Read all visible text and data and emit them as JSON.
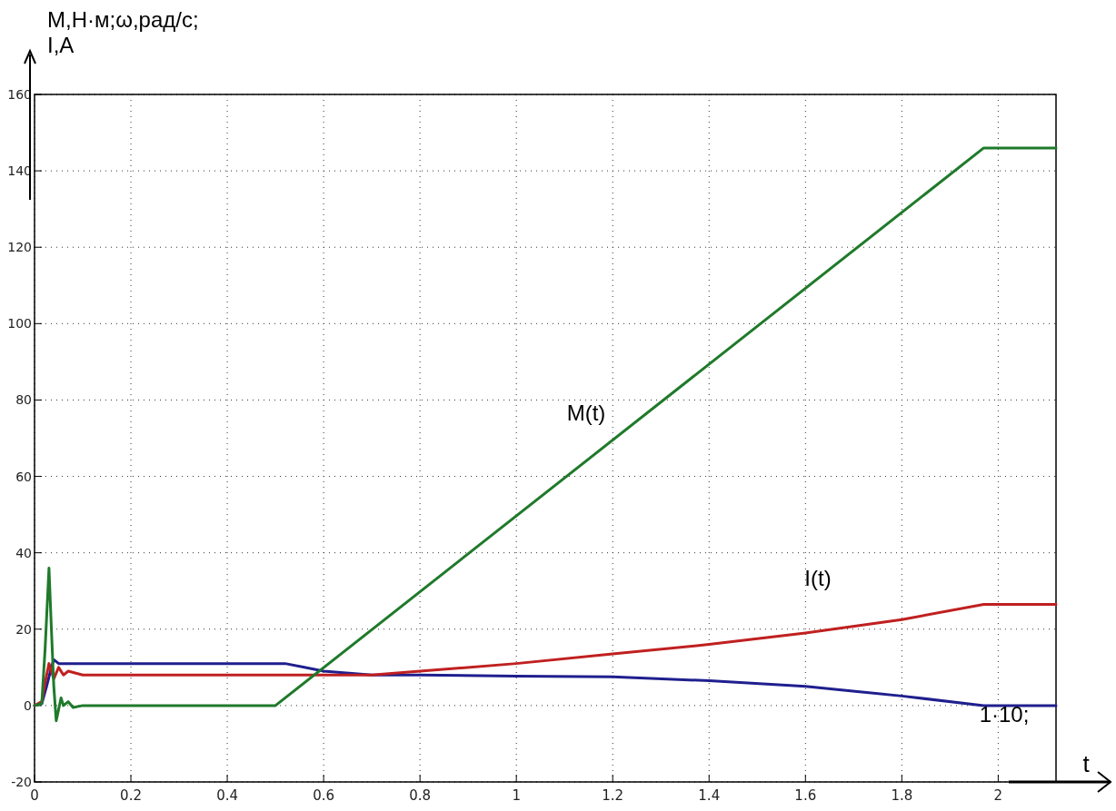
{
  "chart_data": {
    "type": "line",
    "ylabel": "M,Н·м;ω,рад/с;\nI,А",
    "xlabel": "t",
    "xlim": [
      0,
      2.12
    ],
    "ylim": [
      -20,
      160
    ],
    "xticks": [
      0,
      0.2,
      0.4,
      0.6,
      0.8,
      1,
      1.2,
      1.4,
      1.6,
      1.8,
      2
    ],
    "yticks": [
      -20,
      0,
      20,
      40,
      60,
      80,
      100,
      120,
      140,
      160
    ],
    "grid": true,
    "marker": "none",
    "line_style": "solid",
    "series": [
      {
        "color": "#1f1f8f",
        "x": [
          0,
          0.015,
          0.025,
          0.035,
          0.04,
          0.05,
          0.07,
          0.1,
          0.52,
          0.56,
          0.6,
          0.7,
          0.8,
          1,
          1.2,
          1.4,
          1.6,
          1.8,
          1.97,
          2.12
        ],
        "values": [
          0,
          0.5,
          5,
          10,
          12,
          11,
          11,
          11,
          11,
          10,
          9,
          8,
          8,
          7.7,
          7.5,
          6.5,
          5,
          2.5,
          0,
          0
        ]
      },
      {
        "color": "#c02020",
        "x": [
          0,
          0.015,
          0.022,
          0.03,
          0.035,
          0.04,
          0.05,
          0.06,
          0.07,
          0.1,
          0.7,
          0.8,
          1,
          1.2,
          1.4,
          1.6,
          1.8,
          1.97,
          2.12
        ],
        "values": [
          0,
          1,
          6,
          11,
          9,
          7,
          10,
          8,
          9,
          8,
          8,
          9,
          11,
          13.5,
          16,
          19,
          22.5,
          26.5,
          26.5
        ]
      },
      {
        "color": "#1f7a2a",
        "x": [
          0,
          0.015,
          0.022,
          0.03,
          0.035,
          0.04,
          0.045,
          0.05,
          0.055,
          0.06,
          0.07,
          0.08,
          0.1,
          0.5,
          1.97,
          2.12
        ],
        "values": [
          0,
          0.5,
          15,
          36,
          20,
          5,
          -4,
          -1,
          2,
          0,
          1,
          -0.5,
          0,
          0,
          146,
          146
        ]
      }
    ],
    "annotations": [
      "M(t)",
      "I(t)",
      "1·10;"
    ]
  }
}
